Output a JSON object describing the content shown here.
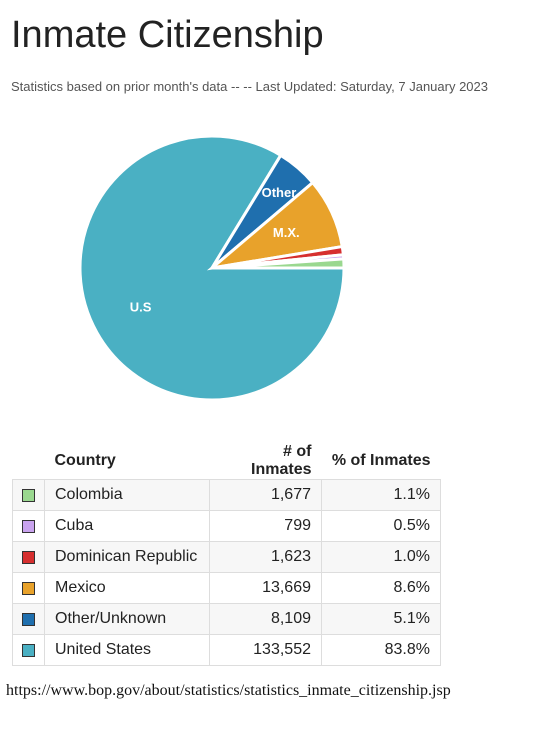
{
  "chart_data": {
    "type": "pie",
    "title": "Inmate Citizenship",
    "subtitle": "Statistics based on prior month's data -- -- Last Updated: Saturday, 7 January 2023",
    "categories": [
      "Colombia",
      "Cuba",
      "Dominican Republic",
      "Mexico",
      "Other/Unknown",
      "United States"
    ],
    "values": [
      1.1,
      0.5,
      1.0,
      8.6,
      5.1,
      83.8
    ],
    "value_labels": [
      "1.1%",
      "0.5%",
      "1.0%",
      "8.6%",
      "5.1%",
      "83.8%"
    ],
    "slice_labels": [
      null,
      null,
      null,
      "M.X.",
      "Other",
      "U.S"
    ],
    "colors": [
      "#9ad88f",
      "#c9a3ee",
      "#d62f2f",
      "#e8a22b",
      "#1f6fae",
      "#4ab0c3"
    ]
  },
  "table": {
    "headers": [
      "Country",
      "# of Inmates",
      "% of Inmates"
    ],
    "counts": [
      "1,677",
      "799",
      "1,623",
      "13,669",
      "8,109",
      "133,552"
    ]
  },
  "source_url": "https://www.bop.gov/about/statistics/statistics_inmate_citizenship.jsp"
}
